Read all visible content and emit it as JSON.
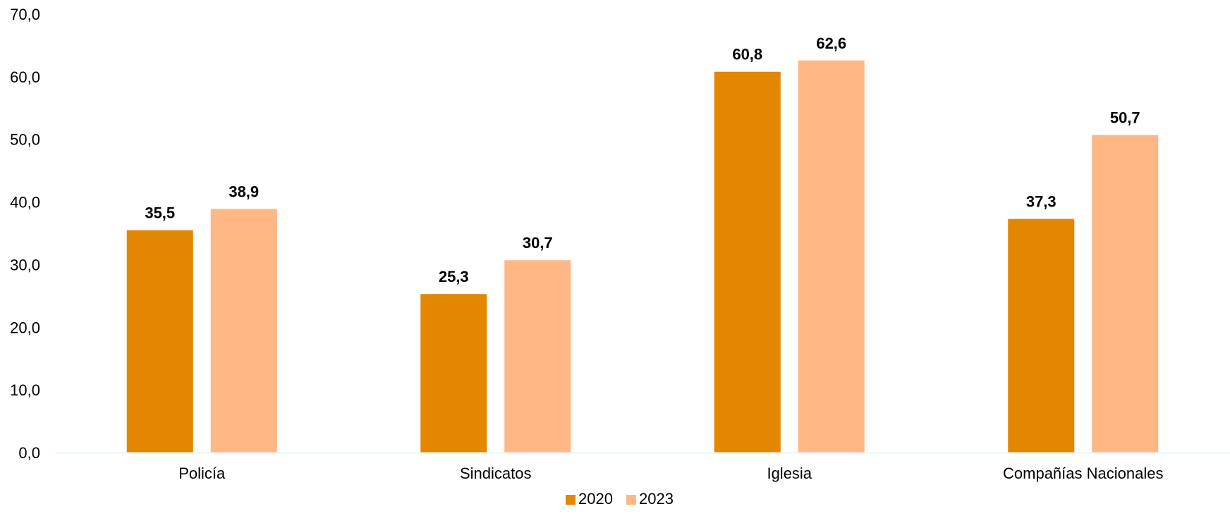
{
  "chart_data": {
    "type": "bar",
    "categories": [
      "Policía",
      "Sindicatos",
      "Iglesia",
      "Compañías Nacionales"
    ],
    "series": [
      {
        "name": "2020",
        "values": [
          35.5,
          25.3,
          60.8,
          37.3
        ],
        "color": "#E38600"
      },
      {
        "name": "2023",
        "values": [
          38.9,
          30.7,
          62.6,
          50.7
        ],
        "color": "#FFB785"
      }
    ],
    "data_labels": [
      [
        "35,5",
        "25,3",
        "60,8",
        "37,3"
      ],
      [
        "38,9",
        "30,7",
        "62,6",
        "50,7"
      ]
    ],
    "y_ticks": [
      "0,0",
      "10,0",
      "20,0",
      "30,0",
      "40,0",
      "50,0",
      "60,0",
      "70,0"
    ],
    "ylim": [
      0,
      70
    ],
    "grid": false,
    "legend_position": "bottom-center",
    "axis_color": "#EAF6F6"
  }
}
